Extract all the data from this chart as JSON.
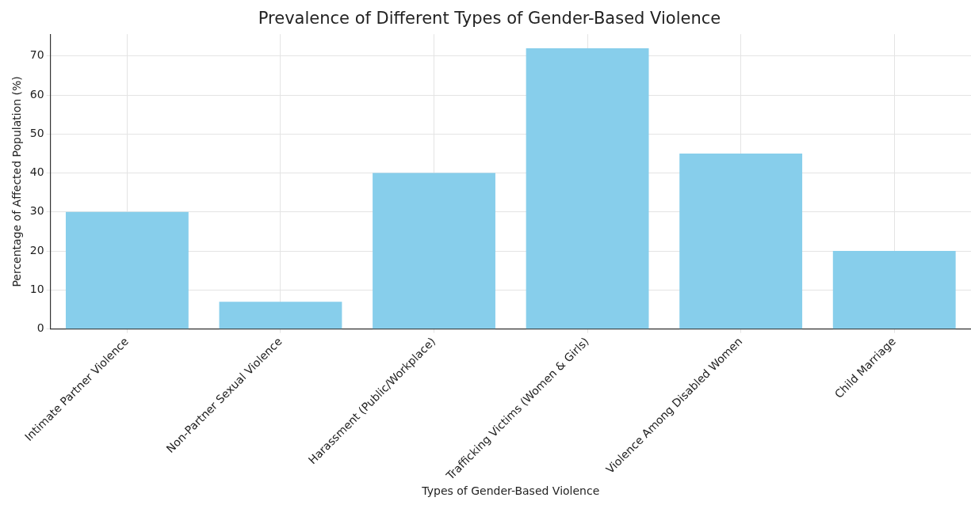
{
  "chart_data": {
    "type": "bar",
    "title": "Prevalence of Different Types of Gender-Based Violence",
    "xlabel": "Types of Gender-Based Violence",
    "ylabel": "Percentage of Affected Population (%)",
    "categories": [
      "Intimate Partner Violence",
      "Non-Partner Sexual Violence",
      "Harassment (Public/Workplace)",
      "Trafficking Victims (Women & Girls)",
      "Violence Among Disabled Women",
      "Child Marriage"
    ],
    "values": [
      30,
      7,
      40,
      72,
      45,
      20
    ],
    "color": "#87ceeb",
    "ylim": [
      0,
      75.6
    ],
    "yticks": [
      0,
      10,
      20,
      30,
      40,
      50,
      60,
      70
    ],
    "grid": true,
    "legend": false
  }
}
